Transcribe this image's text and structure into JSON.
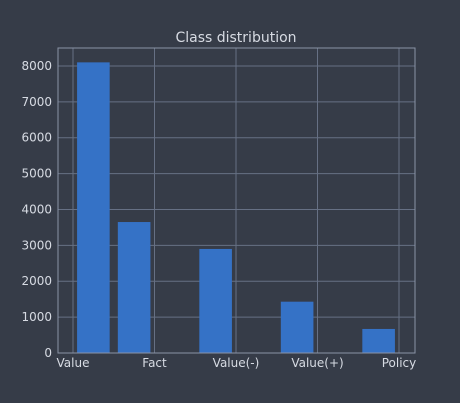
{
  "chart_data": {
    "type": "histogram",
    "title": "Class distribution",
    "xlabel": "",
    "ylabel": "",
    "x_tick_labels": [
      "Value",
      "Fact",
      "Value(-)",
      "Value(+)",
      "Policy"
    ],
    "y_ticks": [
      0,
      1000,
      2000,
      3000,
      4000,
      5000,
      6000,
      7000,
      8000
    ],
    "ylim": [
      0,
      8500
    ],
    "bars": [
      {
        "category": "Value",
        "value": 8100
      },
      {
        "category": "Fact",
        "value": 3650
      },
      {
        "category": "",
        "value": 0
      },
      {
        "category": "Value(-)",
        "value": 2900
      },
      {
        "category": "",
        "value": 0
      },
      {
        "category": "Value(+)",
        "value": 1430
      },
      {
        "category": "",
        "value": 0
      },
      {
        "category": "Policy",
        "value": 670
      }
    ],
    "bar_color": "#3572c6",
    "background_color": "#363c48",
    "grid": true,
    "legend": false
  }
}
